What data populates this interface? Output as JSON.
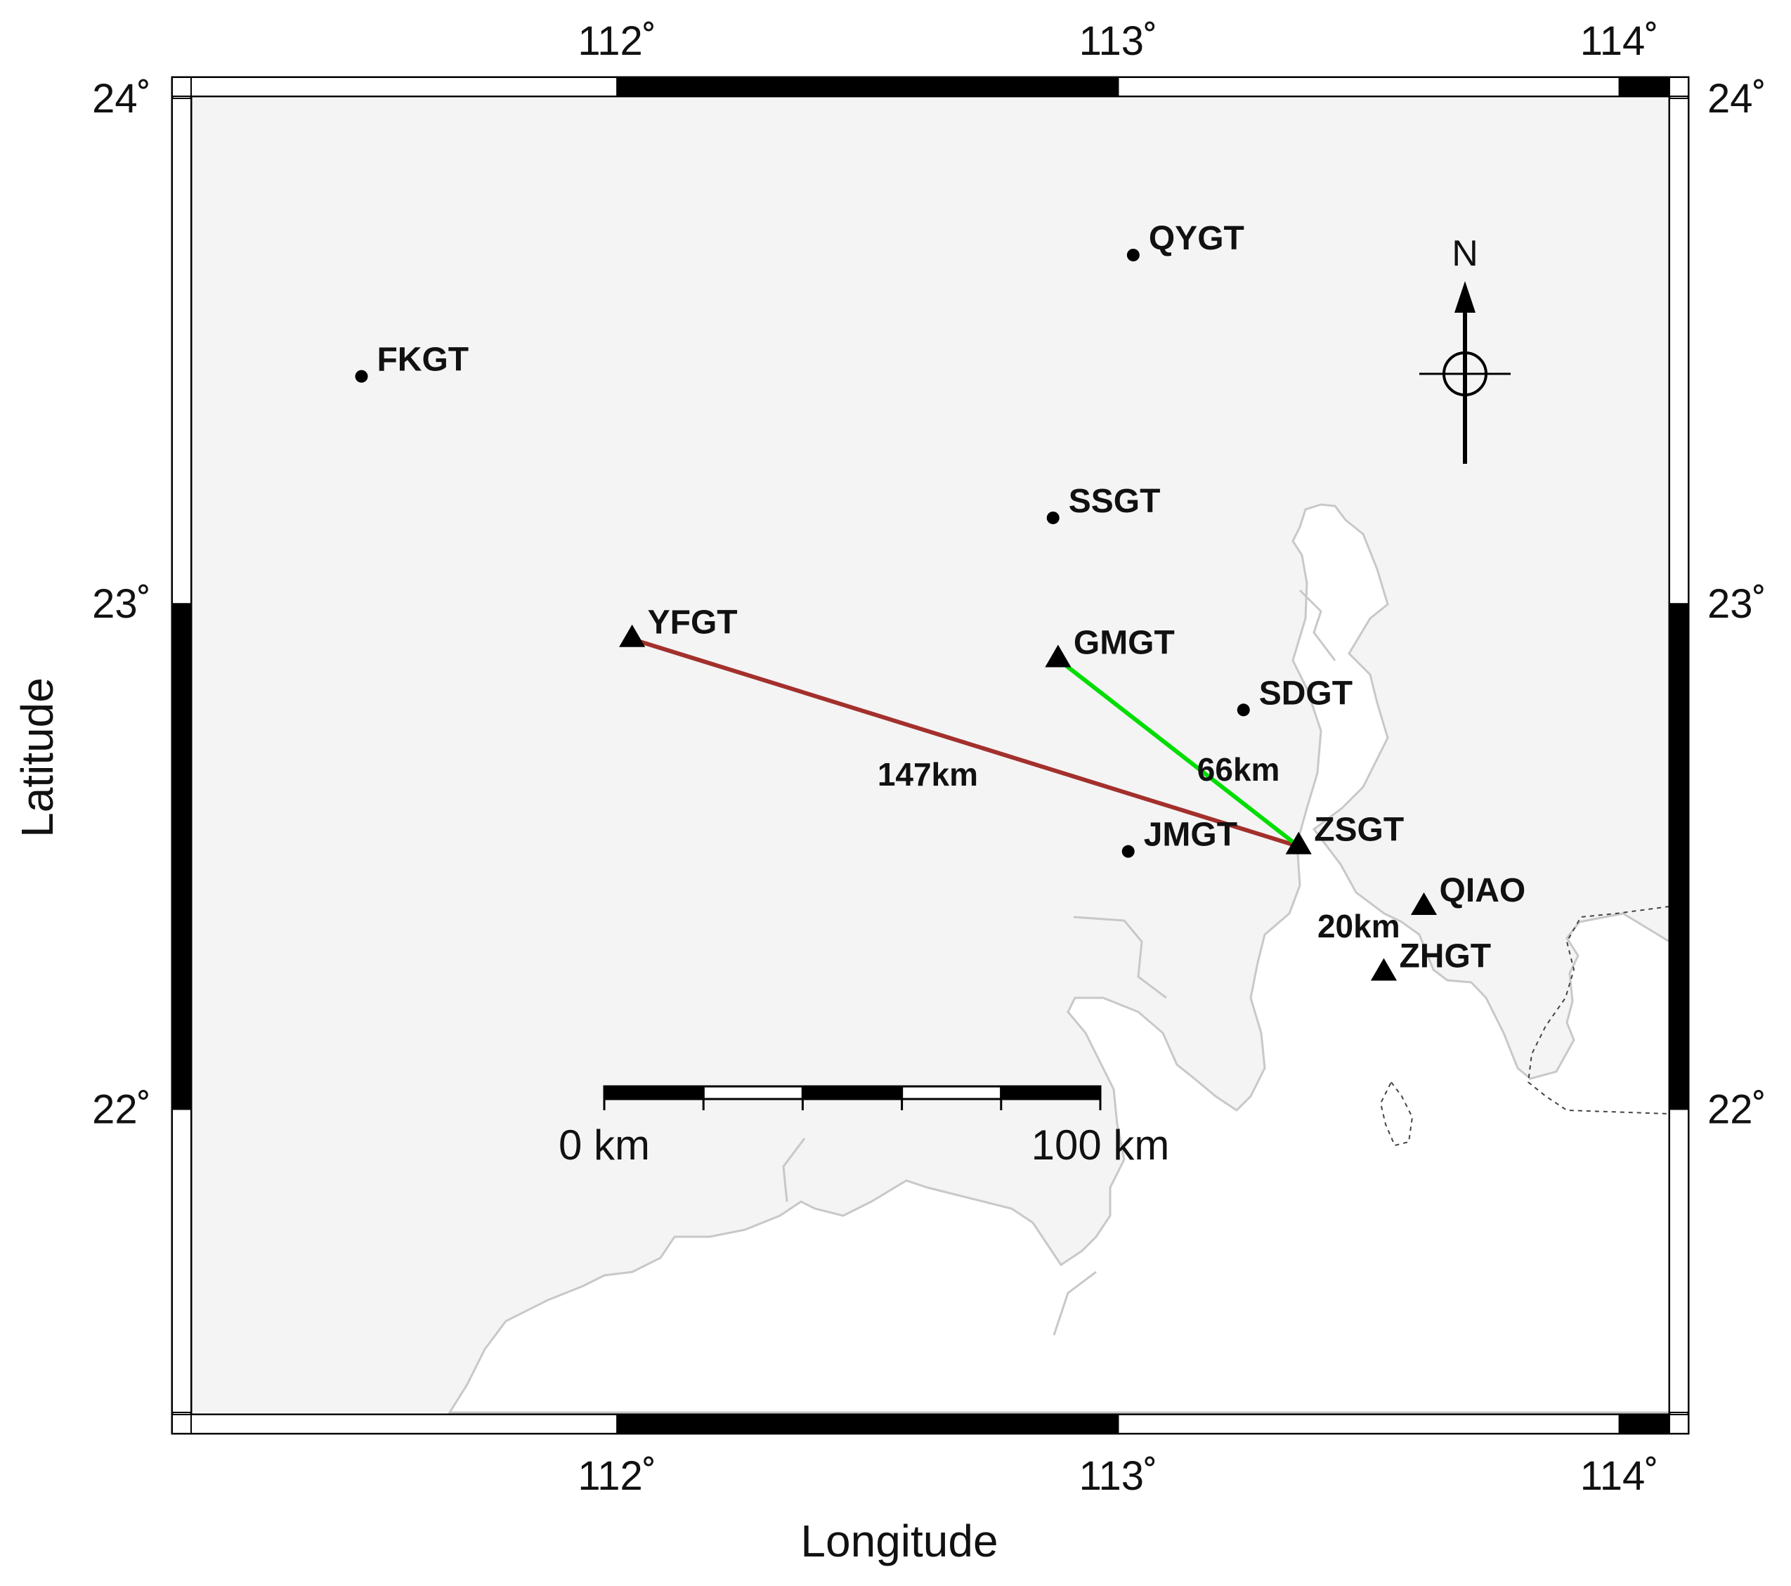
{
  "map": {
    "xlabel": "Longitude",
    "ylabel": "Latitude",
    "lon_range": [
      111.15,
      114.1
    ],
    "lat_range": [
      21.4,
      24.0
    ],
    "frame_segments_lon": [
      111.15,
      112.0,
      113.0,
      114.0,
      114.1
    ],
    "frame_segments_lat": [
      21.4,
      22.0,
      23.0,
      24.0
    ],
    "lon_ticks": [
      {
        "value": 112,
        "label": "112˚"
      },
      {
        "value": 113,
        "label": "113˚"
      },
      {
        "value": 114,
        "label": "114˚"
      }
    ],
    "lat_ticks": [
      {
        "value": 22,
        "label": "22˚"
      },
      {
        "value": 23,
        "label": "23˚"
      },
      {
        "value": 24,
        "label": "24˚"
      }
    ],
    "colors": {
      "land": "#f4f4f4",
      "sea": "#ffffff",
      "coast": "#c8c8c8",
      "frame": "#000000",
      "marker": "#000000",
      "line_long": "#a3302c",
      "line_short": "#00dd00"
    }
  },
  "stations": [
    {
      "id": "QYGT",
      "label": "QYGT",
      "lon": 113.03,
      "lat": 23.69,
      "marker": "dot"
    },
    {
      "id": "FKGT",
      "label": "FKGT",
      "lon": 111.49,
      "lat": 23.45,
      "marker": "dot"
    },
    {
      "id": "SSGT",
      "label": "SSGT",
      "lon": 112.87,
      "lat": 23.17,
      "marker": "dot"
    },
    {
      "id": "YFGT",
      "label": "YFGT",
      "lon": 112.03,
      "lat": 22.93,
      "marker": "triangle"
    },
    {
      "id": "GMGT",
      "label": "GMGT",
      "lon": 112.88,
      "lat": 22.89,
      "marker": "triangle"
    },
    {
      "id": "SDGT",
      "label": "SDGT",
      "lon": 113.25,
      "lat": 22.79,
      "marker": "dot"
    },
    {
      "id": "ZSGT",
      "label": "ZSGT",
      "lon": 113.36,
      "lat": 22.52,
      "marker": "triangle"
    },
    {
      "id": "JMGT",
      "label": "JMGT",
      "lon": 113.02,
      "lat": 22.51,
      "marker": "dot"
    },
    {
      "id": "QIAO",
      "label": "QIAO",
      "lon": 113.61,
      "lat": 22.4,
      "marker": "triangle"
    },
    {
      "id": "ZHGT",
      "label": "ZHGT",
      "lon": 113.53,
      "lat": 22.27,
      "marker": "triangle"
    }
  ],
  "baselines": [
    {
      "from": "YFGT",
      "to": "ZSGT",
      "label": "147km",
      "color": "#a3302c",
      "label_lon": 112.62,
      "label_lat": 22.64
    },
    {
      "from": "GMGT",
      "to": "ZSGT",
      "label": "66km",
      "color": "#00dd00",
      "label_lon": 113.24,
      "label_lat": 22.65
    },
    {
      "from": "QIAO",
      "to": "ZHGT",
      "label": "20km",
      "color": "",
      "label_lon": 113.48,
      "label_lat": 22.34
    }
  ],
  "scale_bar": {
    "start_label": "0 km",
    "end_label": "100 km",
    "length_km": 100,
    "segments": 5
  },
  "north_arrow": {
    "label": "N"
  }
}
